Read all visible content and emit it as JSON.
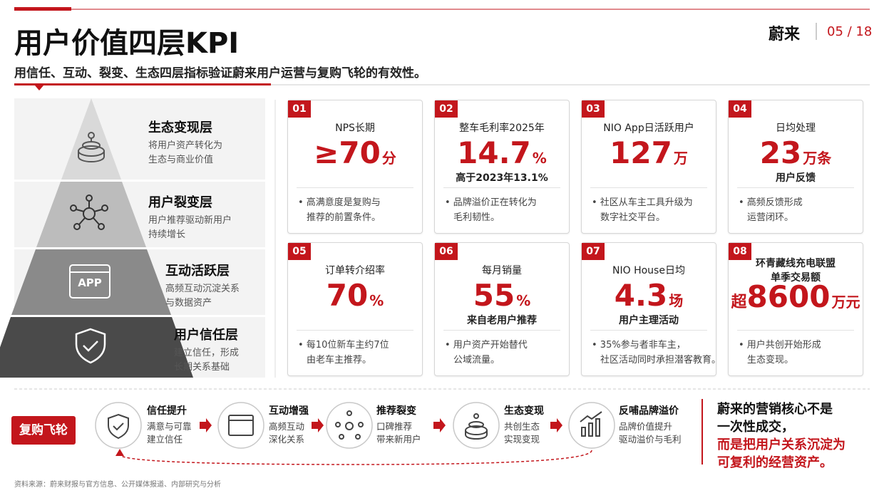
{
  "header": {
    "title": "用户价值四层KPI",
    "subtitle": "用信任、互动、裂变、生态四层指标验证蔚来用户运营与复购飞轮的有效性。",
    "brand": "蔚来",
    "page": "05 / 18"
  },
  "pyramid": [
    {
      "title": "生态变现层",
      "desc": [
        "将用户资产转化为",
        "生态与商业价值"
      ]
    },
    {
      "title": "用户裂变层",
      "desc": [
        "用户推荐驱动新用户",
        "持续增长"
      ]
    },
    {
      "title": "互动活跃层",
      "desc": [
        "高频互动沉淀关系",
        "与数据资产"
      ],
      "icon_label": "APP"
    },
    {
      "title": "用户信任层",
      "desc": [
        "建立信任，形成",
        "长期关系基础"
      ]
    }
  ],
  "kpis": [
    {
      "id": "01",
      "label": [
        "NPS长期"
      ],
      "value": "≥70",
      "unit": "分",
      "bullet": [
        "高满意度是复购与",
        "推荐的前置条件。"
      ]
    },
    {
      "id": "02",
      "label": [
        "整车毛利率2025年"
      ],
      "value": "14.7",
      "unit": "%",
      "note": "高于2023年13.1%",
      "bullet": [
        "品牌溢价正在转化为",
        "毛利韧性。"
      ]
    },
    {
      "id": "03",
      "label": [
        "NIO App日活跃用户"
      ],
      "value": "127",
      "unit": "万",
      "bullet": [
        "社区从车主工具升级为",
        "数字社交平台。"
      ]
    },
    {
      "id": "04",
      "label": [
        "日均处理"
      ],
      "value": "23",
      "unit": "万条",
      "note": "用户反馈",
      "bullet": [
        "高频反馈形成",
        "运营闭环。"
      ]
    },
    {
      "id": "05",
      "label": [
        "订单转介绍率"
      ],
      "value": "70",
      "unit": "%",
      "bullet": [
        "每10位新车主约7位",
        "由老车主推荐。"
      ]
    },
    {
      "id": "06",
      "label": [
        "每月销量"
      ],
      "value": "55",
      "unit": "%",
      "note": "来自老用户推荐",
      "bullet": [
        "用户资产开始替代",
        "公域流量。"
      ]
    },
    {
      "id": "07",
      "label": [
        "NIO House日均"
      ],
      "value": "4.3",
      "unit": "场",
      "note": "用户主理活动",
      "bullet": [
        "35%参与者非车主，",
        "社区活动同时承担潜客教育。"
      ]
    },
    {
      "id": "08",
      "label": [
        "环青藏线充电联盟",
        "单季交易额"
      ],
      "prefix": "超",
      "value": "8600",
      "unit": "万元",
      "bullet": [
        "用户共创开始形成",
        "生态变现。"
      ]
    }
  ],
  "flywheel": {
    "label": "复购飞轮",
    "steps": [
      {
        "title": "信任提升",
        "desc": [
          "满意与可靠",
          "建立信任"
        ]
      },
      {
        "title": "互动增强",
        "desc": [
          "高频互动",
          "深化关系"
        ]
      },
      {
        "title": "推荐裂变",
        "desc": [
          "口碑推荐",
          "带来新用户"
        ]
      },
      {
        "title": "生态变现",
        "desc": [
          "共创生态",
          "实现变现"
        ]
      },
      {
        "title": "反哺品牌溢价",
        "desc": [
          "品牌价值提升",
          "驱动溢价与毛利"
        ]
      }
    ]
  },
  "conclusion": [
    "蔚来的营销核心不是",
    "一次性成交，",
    "而是把用户关系沉淀为",
    "可复利的经营资产。"
  ],
  "source": "资料来源：蔚来财报与官方信息、公开媒体报道、内部研究与分析"
}
